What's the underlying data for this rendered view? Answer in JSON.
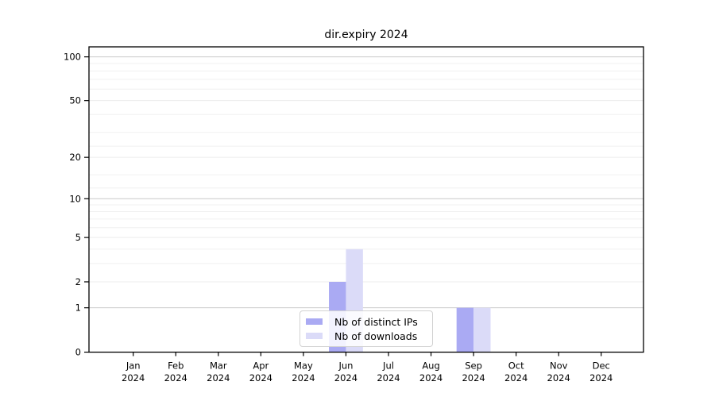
{
  "figure": {
    "background": "#ffffff"
  },
  "chart_data": {
    "type": "bar",
    "title": "dir.expiry 2024",
    "categories": [
      "Jan 2024",
      "Feb 2024",
      "Mar 2024",
      "Apr 2024",
      "May 2024",
      "Jun 2024",
      "Jul 2024",
      "Aug 2024",
      "Sep 2024",
      "Oct 2024",
      "Nov 2024",
      "Dec 2024"
    ],
    "series": [
      {
        "name": "Nb of distinct IPs",
        "color": "#aaaaf3",
        "values": [
          0,
          0,
          0,
          0,
          0,
          2,
          0,
          0,
          1,
          0,
          0,
          0
        ]
      },
      {
        "name": "Nb of downloads",
        "color": "#dbdbf8",
        "values": [
          0,
          0,
          0,
          0,
          0,
          4,
          0,
          0,
          1,
          0,
          0,
          0
        ]
      }
    ],
    "yticks": [
      0,
      1,
      2,
      5,
      10,
      20,
      50,
      100
    ],
    "ylim": [
      0,
      117
    ],
    "yscale": "log1p",
    "grid": true,
    "legend_position": "lower center",
    "colors": {
      "spine": "#000000",
      "major_gridline": "#c9c9c9",
      "minor_gridline": "#f0f0f0",
      "mid_gridline": "#ececec"
    }
  }
}
